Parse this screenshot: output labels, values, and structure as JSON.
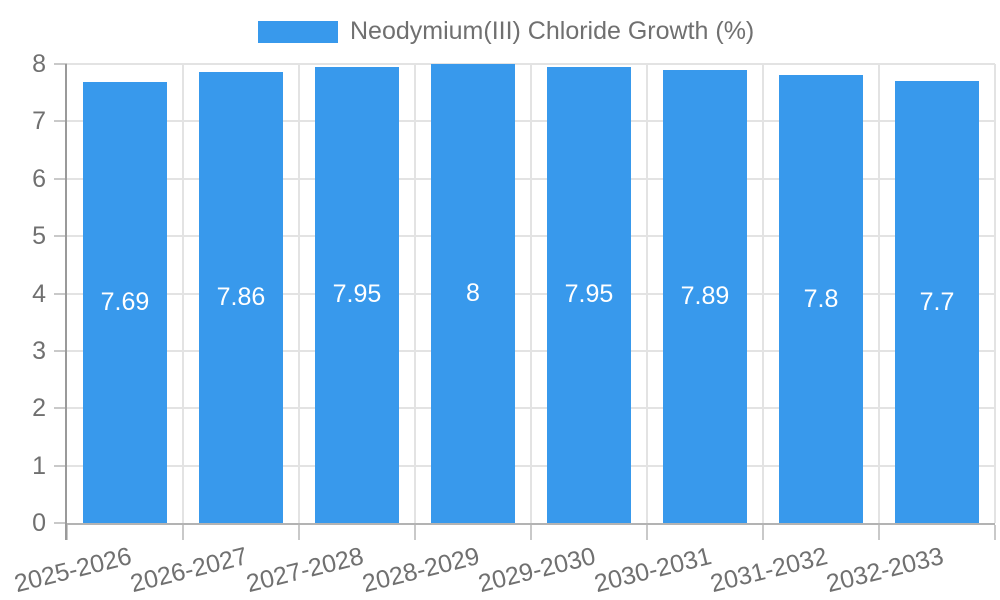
{
  "chart_data": {
    "type": "bar",
    "title": "Neodymium(III) Chloride Growth (%)",
    "categories": [
      "2025-2026",
      "2026-2027",
      "2027-2028",
      "2028-2029",
      "2029-2030",
      "2030-2031",
      "2031-2032",
      "2032-2033"
    ],
    "values": [
      7.69,
      7.86,
      7.95,
      8,
      7.95,
      7.89,
      7.8,
      7.7
    ],
    "xlabel": "",
    "ylabel": "",
    "ylim": [
      0,
      8
    ],
    "y_tick_step": 1,
    "y_tick_labels": [
      "0",
      "1",
      "2",
      "3",
      "4",
      "5",
      "6",
      "7",
      "8"
    ],
    "grid": true,
    "legend_position": "top",
    "colors": {
      "series": "#3899ec",
      "axis_text": "#707070",
      "bar_label": "#ffffff",
      "gridline": "#e3e3e3",
      "tick": "#c9c9c9",
      "baseline": "#b3b3b3",
      "axis_line": "#9a9a9a",
      "background": "#ffffff"
    }
  }
}
